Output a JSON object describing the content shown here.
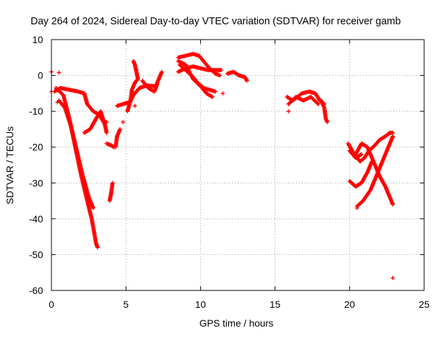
{
  "chart_data": {
    "type": "scatter",
    "title": "Day 264 of 2024, Sidereal Day-to-day VTEC variation (SDTVAR) for receiver gamb",
    "xlabel": "GPS time / hours",
    "ylabel": "SDTVAR / TECUs",
    "xlim": [
      0,
      25
    ],
    "ylim": [
      -60,
      10
    ],
    "xticks": [
      "0",
      "5",
      "10",
      "15",
      "20",
      "25"
    ],
    "yticks": [
      "10",
      "0",
      "-10",
      "-20",
      "-30",
      "-40",
      "-50",
      "-60"
    ],
    "xtick_values": [
      0,
      5,
      10,
      15,
      20,
      25
    ],
    "ytick_values": [
      10,
      0,
      -10,
      -20,
      -30,
      -40,
      -50,
      -60
    ],
    "grid": true,
    "marker": "+",
    "color": "#ff0000",
    "series": [
      {
        "tracks": [
          [
            [
              0.3,
              -3.5
            ],
            [
              0.8,
              -5.5
            ],
            [
              1.2,
              -12
            ],
            [
              1.6,
              -20
            ],
            [
              2.0,
              -28
            ],
            [
              2.4,
              -35
            ],
            [
              2.7,
              -40
            ],
            [
              3.0,
              -47
            ],
            [
              3.1,
              -48
            ]
          ],
          [
            [
              0.5,
              -7
            ],
            [
              0.9,
              -9
            ],
            [
              1.3,
              -14
            ],
            [
              1.7,
              -21
            ],
            [
              2.1,
              -28
            ],
            [
              2.5,
              -34
            ],
            [
              2.8,
              -37
            ]
          ],
          [
            [
              0.2,
              -4.5
            ],
            [
              0.6,
              -3.5
            ],
            [
              1.2,
              -4
            ],
            [
              1.8,
              -4.5
            ],
            [
              2.2,
              -5
            ],
            [
              2.4,
              -8
            ],
            [
              2.8,
              -10
            ],
            [
              3.2,
              -11
            ],
            [
              3.5,
              -13
            ],
            [
              3.7,
              -13
            ]
          ],
          [
            [
              2.2,
              -16
            ],
            [
              2.6,
              -15
            ],
            [
              3.0,
              -12
            ],
            [
              3.3,
              -10
            ],
            [
              3.6,
              -14
            ],
            [
              3.7,
              -16
            ]
          ],
          [
            [
              3.7,
              -19
            ],
            [
              4.0,
              -19.5
            ],
            [
              4.2,
              -20
            ]
          ],
          [
            [
              3.9,
              -35
            ],
            [
              4.0,
              -33
            ],
            [
              4.1,
              -30
            ]
          ],
          [
            [
              4.3,
              -20
            ],
            [
              4.4,
              -17
            ],
            [
              4.6,
              -15
            ]
          ],
          [
            [
              4.4,
              -8.5
            ],
            [
              4.8,
              -8
            ],
            [
              5.2,
              -7.5
            ]
          ],
          [
            [
              5.1,
              -10
            ],
            [
              5.3,
              -7
            ],
            [
              5.4,
              -4
            ],
            [
              5.6,
              -2
            ],
            [
              5.8,
              -1
            ],
            [
              5.7,
              1
            ],
            [
              5.6,
              3
            ],
            [
              5.5,
              4
            ]
          ],
          [
            [
              5.2,
              -8
            ],
            [
              5.5,
              -5.5
            ],
            [
              5.9,
              -3.5
            ],
            [
              6.4,
              -2.8
            ],
            [
              7.0,
              -3
            ],
            [
              7.2,
              -1
            ],
            [
              7.4,
              1
            ]
          ],
          [
            [
              6.1,
              -1.5
            ],
            [
              6.5,
              -3.5
            ],
            [
              6.9,
              -4.5
            ],
            [
              7.1,
              -2.5
            ]
          ],
          [
            [
              8.5,
              4
            ],
            [
              9.0,
              3
            ],
            [
              9.5,
              -1
            ],
            [
              10.0,
              -3
            ],
            [
              10.4,
              -5
            ],
            [
              10.8,
              -6
            ]
          ],
          [
            [
              8.5,
              1
            ],
            [
              9.0,
              2
            ],
            [
              9.5,
              2.5
            ],
            [
              10.0,
              2
            ],
            [
              10.5,
              1.5
            ],
            [
              11.0,
              1.5
            ],
            [
              11.4,
              1.5
            ]
          ],
          [
            [
              8.5,
              5
            ],
            [
              9.0,
              5.5
            ],
            [
              9.5,
              6
            ],
            [
              9.9,
              5.5
            ],
            [
              10.2,
              4
            ],
            [
              10.6,
              2
            ],
            [
              11.0,
              0.5
            ],
            [
              11.3,
              0
            ]
          ],
          [
            [
              8.6,
              3
            ],
            [
              9.0,
              1.5
            ],
            [
              9.4,
              0
            ],
            [
              9.8,
              -2
            ],
            [
              10.2,
              -3.5
            ],
            [
              10.6,
              -4
            ],
            [
              11.0,
              -4.5
            ]
          ],
          [
            [
              11.8,
              0.5
            ],
            [
              12.2,
              1
            ],
            [
              12.6,
              0
            ],
            [
              13.0,
              -0.5
            ],
            [
              13.1,
              -1.5
            ]
          ],
          [
            [
              15.8,
              -6
            ],
            [
              16.2,
              -7
            ],
            [
              16.8,
              -5
            ],
            [
              17.3,
              -4.5
            ],
            [
              17.7,
              -5
            ],
            [
              18.0,
              -7
            ],
            [
              18.3,
              -8
            ]
          ],
          [
            [
              15.9,
              -8
            ],
            [
              16.4,
              -6
            ],
            [
              16.9,
              -7
            ],
            [
              17.4,
              -6
            ],
            [
              17.9,
              -8
            ]
          ],
          [
            [
              18.1,
              -7
            ],
            [
              18.3,
              -9
            ],
            [
              18.4,
              -12
            ],
            [
              18.5,
              -13
            ]
          ],
          [
            [
              19.9,
              -19
            ],
            [
              20.3,
              -22
            ],
            [
              20.7,
              -24
            ],
            [
              21.0,
              -23
            ],
            [
              21.3,
              -21
            ],
            [
              21.7,
              -19.5
            ],
            [
              22.0,
              -18
            ],
            [
              22.4,
              -17
            ],
            [
              22.7,
              -16
            ],
            [
              22.9,
              -16
            ]
          ],
          [
            [
              20.0,
              -21
            ],
            [
              20.4,
              -23
            ],
            [
              20.8,
              -22
            ]
          ],
          [
            [
              20.4,
              -22
            ],
            [
              20.8,
              -19
            ],
            [
              21.2,
              -20
            ],
            [
              21.6,
              -24
            ],
            [
              22.0,
              -28
            ],
            [
              22.4,
              -31
            ],
            [
              22.7,
              -34
            ],
            [
              22.9,
              -36
            ]
          ],
          [
            [
              20.5,
              -36.5
            ],
            [
              20.9,
              -35
            ],
            [
              21.4,
              -32
            ],
            [
              21.8,
              -28
            ],
            [
              22.2,
              -24
            ],
            [
              22.6,
              -20
            ],
            [
              22.9,
              -17
            ]
          ],
          [
            [
              20.0,
              -29.5
            ],
            [
              20.4,
              -31
            ],
            [
              20.8,
              -30
            ],
            [
              21.2,
              -27
            ],
            [
              21.5,
              -24
            ]
          ]
        ],
        "points": [
          [
            0.0,
            1.0
          ],
          [
            0.5,
            0.8
          ],
          [
            0.0,
            -4.5
          ],
          [
            0.4,
            -7.5
          ],
          [
            4.8,
            -13
          ],
          [
            5.6,
            -8.5
          ],
          [
            5.7,
            1.5
          ],
          [
            11.5,
            -5
          ],
          [
            13.1,
            -1.3
          ],
          [
            15.9,
            -10
          ],
          [
            20.5,
            -37
          ],
          [
            22.9,
            -56.5
          ]
        ]
      }
    ]
  }
}
